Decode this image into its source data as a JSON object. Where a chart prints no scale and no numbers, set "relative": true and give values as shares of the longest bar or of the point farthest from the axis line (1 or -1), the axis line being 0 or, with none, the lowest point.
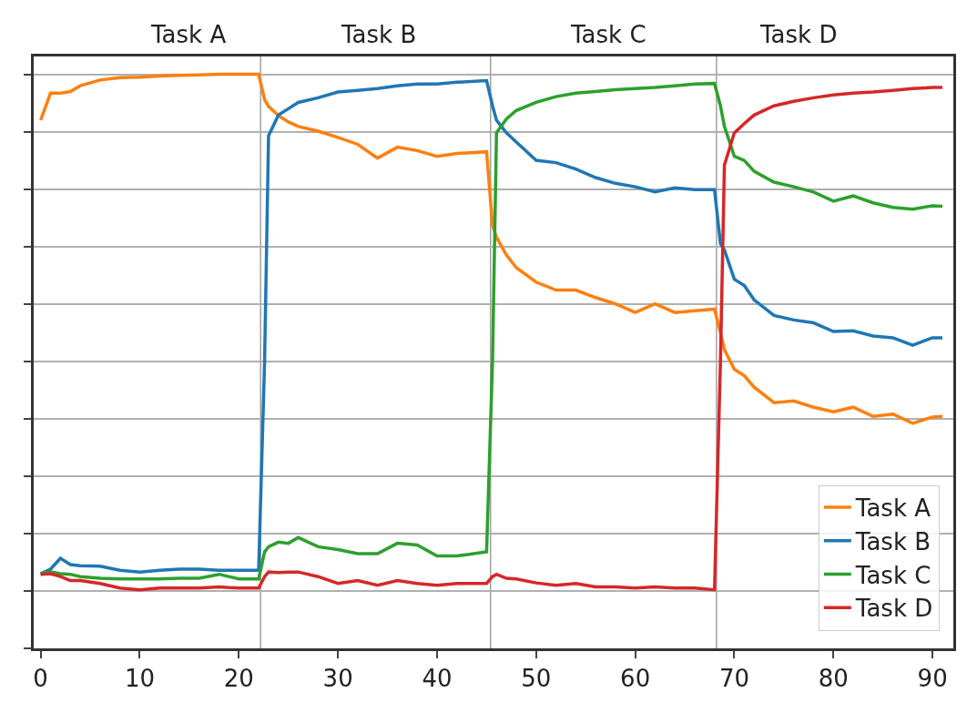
{
  "chart_data": {
    "type": "line",
    "relative": true,
    "x": [
      0,
      1,
      2,
      3,
      4,
      6,
      8,
      10,
      12,
      14,
      16,
      18,
      20,
      22,
      22.6,
      23,
      24,
      25,
      26,
      28,
      30,
      32,
      34,
      36,
      38,
      40,
      42,
      45,
      45.6,
      46,
      47,
      48,
      50,
      52,
      54,
      56,
      58,
      60,
      62,
      64,
      66,
      68,
      68.6,
      69,
      70,
      71,
      72,
      74,
      76,
      78,
      80,
      82,
      84,
      86,
      88,
      90,
      91
    ],
    "series": [
      {
        "name": "Task A",
        "color": "#ff7f0e",
        "values": [
          0.92,
          0.967,
          0.967,
          0.97,
          0.98,
          0.99,
          0.994,
          0.995,
          0.997,
          0.998,
          0.999,
          1.0,
          1.0,
          1.0,
          0.956,
          0.944,
          0.928,
          0.917,
          0.909,
          0.901,
          0.89,
          0.878,
          0.854,
          0.873,
          0.867,
          0.857,
          0.862,
          0.865,
          0.737,
          0.716,
          0.685,
          0.663,
          0.638,
          0.624,
          0.624,
          0.611,
          0.6,
          0.585,
          0.6,
          0.585,
          0.588,
          0.591,
          0.55,
          0.52,
          0.486,
          0.475,
          0.455,
          0.428,
          0.431,
          0.42,
          0.412,
          0.42,
          0.404,
          0.408,
          0.392,
          0.403,
          0.404
        ]
      },
      {
        "name": "Task B",
        "color": "#1f77b4",
        "values": [
          0.13,
          0.138,
          0.157,
          0.146,
          0.144,
          0.143,
          0.136,
          0.133,
          0.136,
          0.138,
          0.138,
          0.136,
          0.136,
          0.136,
          0.5,
          0.893,
          0.929,
          0.94,
          0.951,
          0.959,
          0.969,
          0.972,
          0.975,
          0.98,
          0.983,
          0.983,
          0.986,
          0.989,
          0.945,
          0.92,
          0.898,
          0.882,
          0.85,
          0.846,
          0.835,
          0.82,
          0.81,
          0.804,
          0.795,
          0.802,
          0.799,
          0.799,
          0.705,
          0.694,
          0.643,
          0.632,
          0.607,
          0.58,
          0.572,
          0.567,
          0.552,
          0.553,
          0.544,
          0.541,
          0.528,
          0.541,
          0.541
        ]
      },
      {
        "name": "Task C",
        "color": "#2ca02c",
        "values": [
          0.13,
          0.133,
          0.13,
          0.129,
          0.125,
          0.122,
          0.121,
          0.121,
          0.121,
          0.122,
          0.122,
          0.129,
          0.121,
          0.121,
          0.168,
          0.177,
          0.185,
          0.183,
          0.193,
          0.177,
          0.172,
          0.165,
          0.165,
          0.183,
          0.18,
          0.161,
          0.161,
          0.168,
          0.5,
          0.898,
          0.922,
          0.937,
          0.951,
          0.961,
          0.967,
          0.97,
          0.973,
          0.975,
          0.977,
          0.98,
          0.983,
          0.984,
          0.945,
          0.909,
          0.857,
          0.85,
          0.831,
          0.812,
          0.804,
          0.795,
          0.779,
          0.788,
          0.776,
          0.768,
          0.765,
          0.771,
          0.77
        ]
      },
      {
        "name": "Task D",
        "color": "#d62728",
        "values": [
          0.129,
          0.13,
          0.125,
          0.118,
          0.118,
          0.113,
          0.105,
          0.102,
          0.105,
          0.105,
          0.105,
          0.107,
          0.105,
          0.105,
          0.125,
          0.133,
          0.132,
          0.133,
          0.133,
          0.125,
          0.113,
          0.118,
          0.11,
          0.118,
          0.113,
          0.11,
          0.113,
          0.113,
          0.125,
          0.129,
          0.122,
          0.121,
          0.114,
          0.11,
          0.113,
          0.107,
          0.107,
          0.105,
          0.107,
          0.105,
          0.105,
          0.102,
          0.5,
          0.842,
          0.898,
          0.914,
          0.929,
          0.945,
          0.953,
          0.959,
          0.964,
          0.967,
          0.969,
          0.972,
          0.975,
          0.977,
          0.977
        ]
      }
    ],
    "xlim": [
      -0.7,
      92.1
    ],
    "xticks": [
      0,
      10,
      20,
      30,
      40,
      50,
      60,
      70,
      80,
      90
    ],
    "ref_lines": [
      {
        "axis": "x",
        "value": 22.2,
        "color": "#a0a0a0"
      },
      {
        "axis": "x",
        "value": 45.4,
        "color": "#a0a0a0"
      },
      {
        "axis": "x",
        "value": 68.2,
        "color": "#a0a0a0"
      }
    ],
    "annotations": [
      "Task A",
      "Task B",
      "Task C",
      "Task D"
    ],
    "grid": "y",
    "legend": "bottom right",
    "tick_labels": "x",
    "line_style": "solid",
    "marker": "none"
  }
}
